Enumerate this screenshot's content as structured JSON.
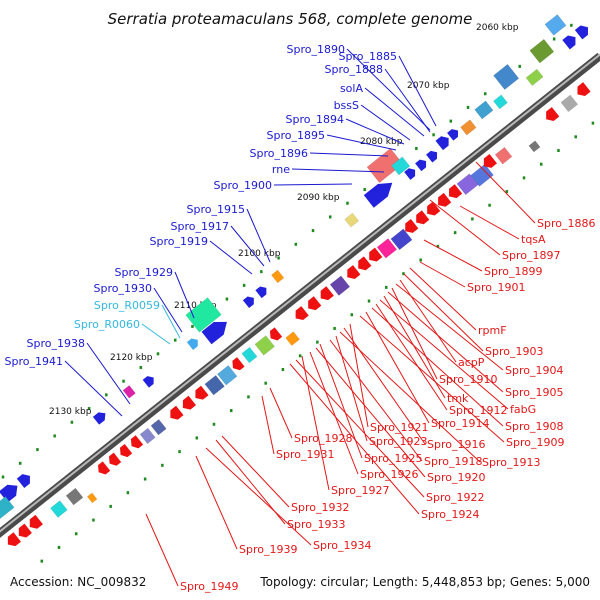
{
  "figure": {
    "title": "Serratia proteamaculans 568, complete genome",
    "accession": "Accession: NC_009832",
    "summary": "Topology: circular; Length: 5,448,853 bp; Genes: 5,000"
  },
  "colors": {
    "forward_label": "#1a1ad0",
    "reverse_label": "#e31818",
    "rna_label": "#33b8e0",
    "backbone": "#707070",
    "tick": "#1e8a1e"
  },
  "ticks": [
    "2060 kbp",
    "2070 kbp",
    "2080 kbp",
    "2090 kbp",
    "2100 kbp",
    "2110 kbp",
    "2120 kbp",
    "2130 kbp"
  ],
  "forward_labels": [
    "Spro_1890",
    "Spro_1885",
    "Spro_1888",
    "solA",
    "bssS",
    "Spro_1894",
    "Spro_1895",
    "Spro_1896",
    "rne",
    "Spro_1900",
    "Spro_1915",
    "Spro_1917",
    "Spro_1919",
    "Spro_1929",
    "Spro_1930",
    "Spro_1938",
    "Spro_1941"
  ],
  "rna_labels": [
    "Spro_R0059",
    "Spro_R0060"
  ],
  "reverse_labels": [
    "Spro_1886",
    "tqsA",
    "Spro_1897",
    "Spro_1899",
    "Spro_1901",
    "rpmF",
    "Spro_1903",
    "acpP",
    "Spro_1904",
    "Spro_1910",
    "Spro_1905",
    "tmk",
    "fabG",
    "Spro_1912",
    "Spro_1908",
    "Spro_1914",
    "Spro_1909",
    "Spro_1921",
    "Spro_1916",
    "Spro_1913",
    "Spro_1928",
    "Spro_1923",
    "Spro_1918",
    "Spro_1931",
    "Spro_1925",
    "Spro_1920",
    "Spro_1926",
    "Spro_1927",
    "Spro_1922",
    "Spro_1924",
    "Spro_1932",
    "Spro_1933",
    "Spro_1934",
    "Spro_1939",
    "Spro_1949"
  ]
}
